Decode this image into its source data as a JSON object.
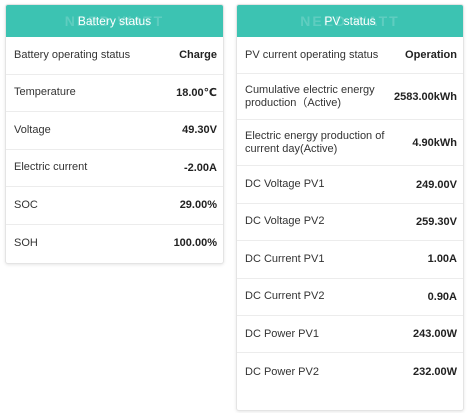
{
  "watermark": "NEED WATT",
  "colors": {
    "header_bg": "#3cc3b2",
    "header_text": "#ffffff"
  },
  "battery": {
    "title": "Battery status",
    "rows": [
      {
        "label": "Battery operating status",
        "value": "Charge"
      },
      {
        "label": "Temperature",
        "value": "18.00℃"
      },
      {
        "label": "Voltage",
        "value": "49.30V"
      },
      {
        "label": "Electric current",
        "value": "-2.00A"
      },
      {
        "label": "SOC",
        "value": "29.00%"
      },
      {
        "label": "SOH",
        "value": "100.00%"
      }
    ]
  },
  "pv": {
    "title": "PV status",
    "rows": [
      {
        "label": "PV current operating status",
        "value": "Operation"
      },
      {
        "label": "Cumulative electric energy production（Active)",
        "value": "2583.00kWh"
      },
      {
        "label": "Electric energy production of current day(Active)",
        "value": "4.90kWh"
      },
      {
        "label": "DC Voltage PV1",
        "value": "249.00V"
      },
      {
        "label": "DC Voltage PV2",
        "value": "259.30V"
      },
      {
        "label": "DC Current PV1",
        "value": "1.00A"
      },
      {
        "label": "DC Current PV2",
        "value": "0.90A"
      },
      {
        "label": "DC Power PV1",
        "value": "243.00W"
      },
      {
        "label": "DC Power PV2",
        "value": "232.00W"
      }
    ]
  }
}
